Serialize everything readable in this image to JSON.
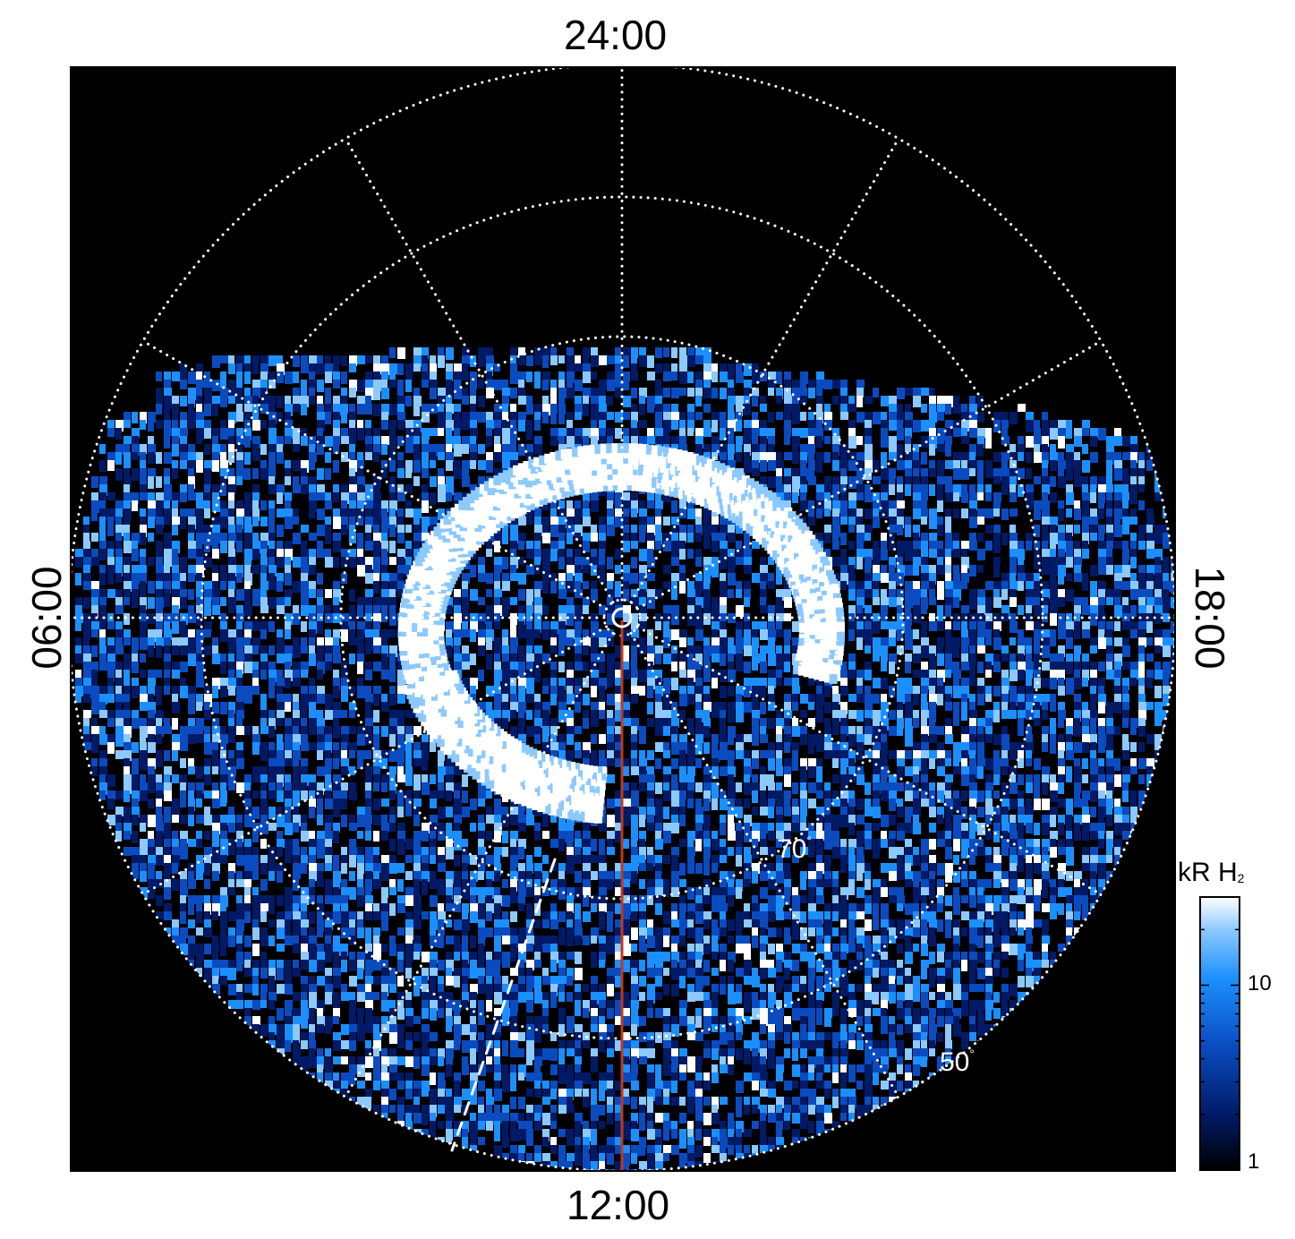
{
  "local_time_labels": {
    "top": "24:00",
    "bottom": "12:00",
    "left": "06:00",
    "right": "18:00"
  },
  "latitude_labels": {
    "lat70": "70",
    "lat50": "50",
    "degree_symbol": "°"
  },
  "colorbar": {
    "title_main": "kR H",
    "title_sub": "2",
    "scale": "log",
    "tick_labels": [
      "1",
      "10"
    ],
    "range": [
      1,
      30
    ]
  },
  "colors": {
    "background": "#000000",
    "frame": "#ffffff",
    "grid": "#ffffff",
    "meridian_line": "#c0391b",
    "colormap": [
      "#000000",
      "#001a66",
      "#0a4bbf",
      "#1c8fff",
      "#8cc9ff",
      "#ffffff"
    ]
  }
}
